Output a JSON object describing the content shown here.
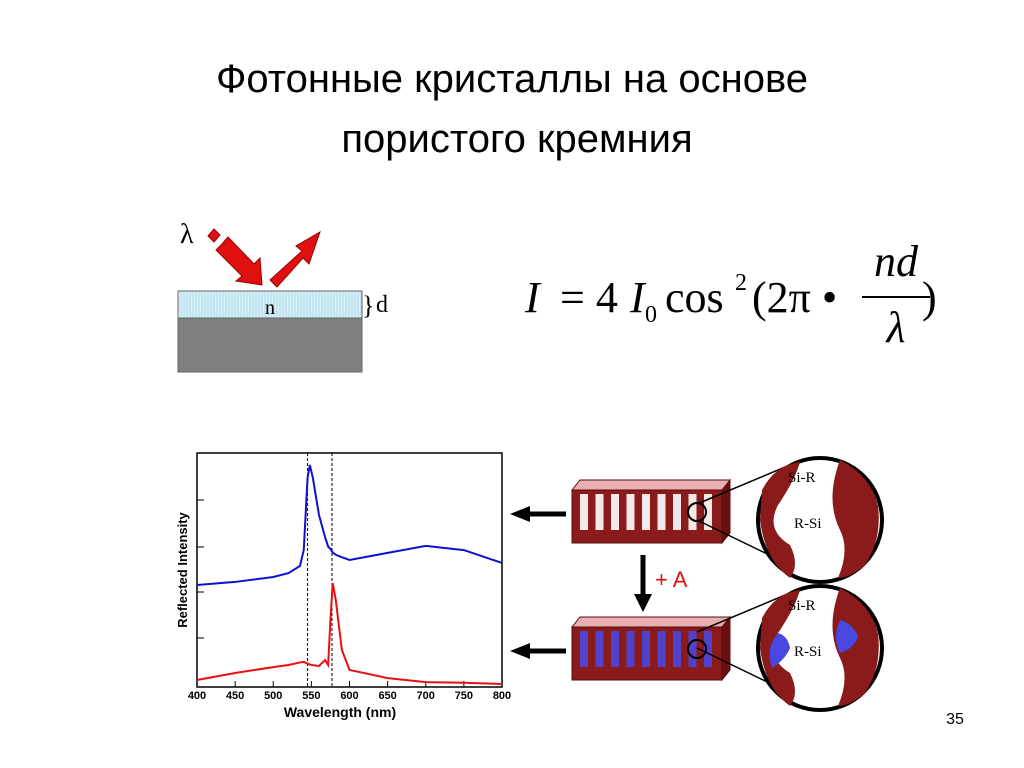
{
  "title": [
    "Фотонные кристаллы на основе",
    "пористого кремния"
  ],
  "diagram": {
    "wavelength": "λ",
    "index": "n",
    "thickness": "d"
  },
  "formula": {
    "lhs": "I",
    "eq": "= 4",
    "i0": "I",
    "sub": "0",
    "cos": "cos",
    "sup": "2",
    "open": "(2π •",
    "num": "nd",
    "den": "λ",
    "close": ")"
  },
  "chart_data": {
    "type": "line",
    "x_label": "Wavelength (nm)",
    "y_label": "Reflected Intensity",
    "x": [
      400,
      450,
      500,
      520,
      535,
      540,
      545,
      548,
      552,
      560,
      568,
      572,
      575,
      578,
      582,
      590,
      600,
      650,
      700,
      750,
      800
    ],
    "series": [
      {
        "color": "#1010d0",
        "values": [
          43.6,
          44.9,
          47,
          48.7,
          51.7,
          58.5,
          89.3,
          94.9,
          89.3,
          73.5,
          64,
          60,
          59,
          57.5,
          56.5,
          55.5,
          54.3,
          57.3,
          60.3,
          58.5,
          53
        ]
      },
      {
        "color": "#e81010",
        "values": [
          3,
          6,
          8.5,
          9.4,
          10.5,
          10.7,
          10,
          9.6,
          9.3,
          9,
          11.5,
          9.4,
          28.6,
          44.4,
          37.2,
          15.8,
          7.3,
          3.8,
          2.1,
          1.8,
          1.3
        ]
      }
    ],
    "markers": [
      545,
      577
    ],
    "xlim": [
      400,
      800
    ],
    "xticks": [
      400,
      450,
      500,
      550,
      600,
      650,
      700,
      750,
      800
    ],
    "ylim": [
      0,
      100
    ]
  },
  "schematic": {
    "top_upper": "Si-R",
    "top_lower": "R-Si",
    "bottom_upper": "Si-R",
    "bottom_lower": "R-Si",
    "reagent": "+ A"
  },
  "page_number": "35"
}
